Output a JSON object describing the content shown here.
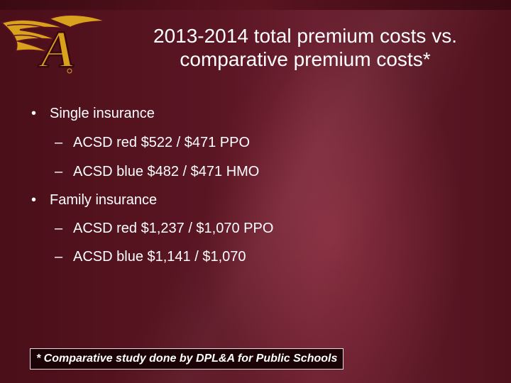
{
  "slide": {
    "title_line1": "2013-2014 total premium costs vs.",
    "title_line2": "comparative premium costs*",
    "logo_text": "A",
    "logo_colors": {
      "gold": "#d8a21c",
      "maroon": "#5a1020"
    },
    "bullets": [
      {
        "level": 1,
        "marker": "•",
        "text": "Single insurance"
      },
      {
        "level": 2,
        "marker": "–",
        "text": "ACSD red $522 / $471 PPO"
      },
      {
        "level": 2,
        "marker": "–",
        "text": "ACSD blue $482 / $471 HMO"
      },
      {
        "level": 1,
        "marker": "•",
        "text": "Family insurance"
      },
      {
        "level": 2,
        "marker": "–",
        "text": "ACSD red $1,237 / $1,070 PPO"
      },
      {
        "level": 2,
        "marker": "–",
        "text": "ACSD blue $1,141 / $1,070"
      }
    ],
    "footnote": "* Comparative study done by DPL&A for Public Schools",
    "colors": {
      "background": "#5c1624",
      "text": "#ffffff"
    }
  }
}
